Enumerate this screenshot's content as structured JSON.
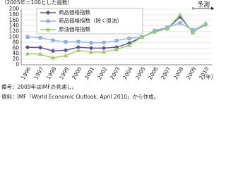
{
  "chart_data": {
    "type": "line",
    "y_unit_label": "（2005年＝100とした指数）",
    "x_unit_label": "（年）",
    "annotation": "予測",
    "categories": [
      "1996",
      "1997",
      "1998",
      "1999",
      "2000",
      "2001",
      "2002",
      "2003",
      "2004",
      "2005",
      "2006",
      "2007",
      "2008",
      "2009",
      "2010"
    ],
    "series": [
      {
        "name": "商品価格指数",
        "color": "#5a4f9c",
        "marker": "diamond",
        "values": [
          63,
          62,
          50,
          52,
          63,
          60,
          60,
          63,
          78,
          100,
          120,
          130,
          172,
          118,
          145
        ]
      },
      {
        "name": "商品価格指数（除く原油）",
        "color": "#8fb4e3",
        "marker": "square",
        "values": [
          100,
          97,
          88,
          82,
          83,
          79,
          80,
          87,
          95,
          100,
          123,
          135,
          150,
          125,
          145
        ]
      },
      {
        "name": "原油価格指数",
        "color": "#9acd66",
        "marker": "triangle",
        "values": [
          40,
          38,
          25,
          33,
          52,
          45,
          46,
          55,
          70,
          100,
          118,
          130,
          180,
          115,
          150
        ]
      }
    ],
    "ylim": [
      0,
      200
    ],
    "yticks": [
      0,
      20,
      40,
      60,
      80,
      100,
      120,
      140,
      160,
      180,
      200
    ],
    "grid": true,
    "notes": [
      "備考：2009年はIMFの見通し。",
      "資料：IMF「World Economic Outlook, April 2010」から作成。"
    ]
  }
}
